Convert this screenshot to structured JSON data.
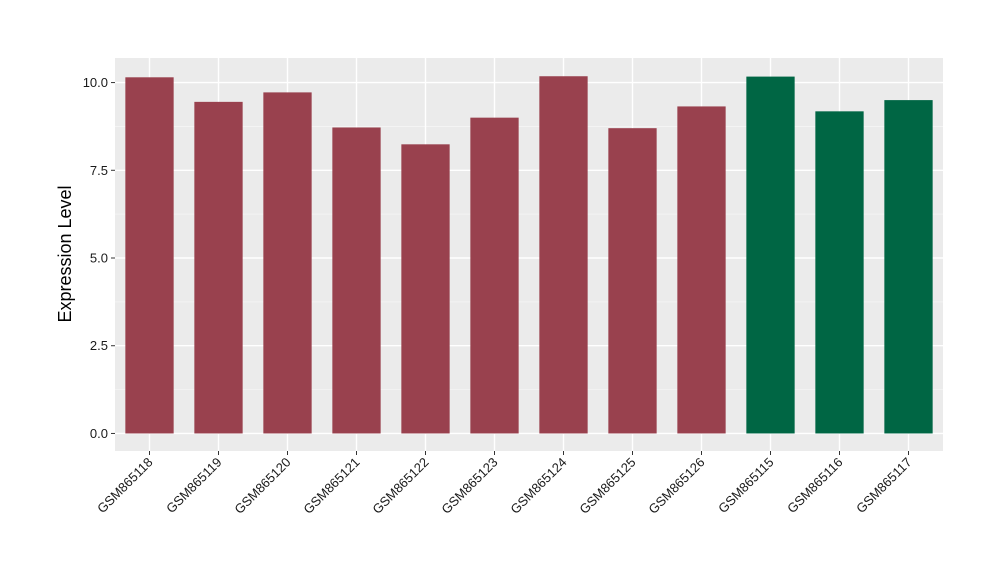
{
  "chart_data": {
    "type": "bar",
    "categories": [
      "GSM865118",
      "GSM865119",
      "GSM865120",
      "GSM865121",
      "GSM865122",
      "GSM865123",
      "GSM865124",
      "GSM865125",
      "GSM865126",
      "GSM865115",
      "GSM865116",
      "GSM865117"
    ],
    "values": [
      10.15,
      9.45,
      9.72,
      8.72,
      8.24,
      9.0,
      10.18,
      8.7,
      9.32,
      10.17,
      9.18,
      9.5
    ],
    "groups": [
      0,
      0,
      0,
      0,
      0,
      0,
      0,
      0,
      0,
      1,
      1,
      1
    ],
    "group_colors": [
      "#99414E",
      "#006644"
    ],
    "ylabel": "Expression Level",
    "xlabel": "",
    "ylim": [
      -0.5,
      10.7
    ],
    "yticks": [
      0.0,
      2.5,
      5.0,
      7.5,
      10.0
    ],
    "ytick_labels": [
      "0.0",
      "2.5",
      "5.0",
      "7.5",
      "10.0"
    ],
    "grid": true,
    "panel_background": "#EBEBEB"
  }
}
